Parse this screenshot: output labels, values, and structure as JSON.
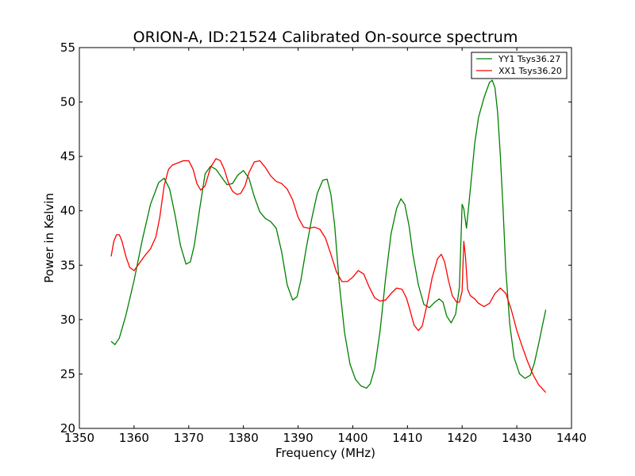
{
  "chart_data": {
    "type": "line",
    "title": "ORION-A, ID:21524 Calibrated On-source spectrum",
    "xlabel": "Frequency (MHz)",
    "ylabel": "Power in Kelvin",
    "xlim": [
      1350,
      1440
    ],
    "ylim": [
      20,
      55
    ],
    "xticks": [
      1350,
      1360,
      1370,
      1380,
      1390,
      1400,
      1410,
      1420,
      1430,
      1440
    ],
    "yticks": [
      20,
      25,
      30,
      35,
      40,
      45,
      50,
      55
    ],
    "grid": false,
    "legend_position": "top-right",
    "series": [
      {
        "name": "YY1 Tsys36.27",
        "color": "#008000",
        "x": [
          1355.8,
          1356.5,
          1357.3,
          1358.5,
          1360,
          1361.5,
          1363,
          1364.5,
          1365.5,
          1366.5,
          1367.5,
          1368.5,
          1369.5,
          1370.3,
          1371,
          1372,
          1373,
          1374,
          1375,
          1376,
          1377,
          1378,
          1379,
          1380,
          1381,
          1382,
          1383,
          1384,
          1385,
          1386,
          1387,
          1388,
          1389,
          1389.8,
          1390.5,
          1391.5,
          1392.5,
          1393.5,
          1394.5,
          1395.3,
          1396,
          1396.7,
          1397.5,
          1398.5,
          1399.5,
          1400.5,
          1401.5,
          1402.5,
          1403.2,
          1404,
          1405,
          1406,
          1407,
          1408,
          1408.8,
          1409.5,
          1410.3,
          1411,
          1412,
          1413,
          1414,
          1415,
          1415.8,
          1416.5,
          1417.2,
          1418,
          1418.8,
          1419.5,
          1420,
          1420.3,
          1420.8,
          1421.5,
          1422.3,
          1423,
          1424,
          1425,
          1425.5,
          1426,
          1426.5,
          1427,
          1427.5,
          1428,
          1428.7,
          1429.5,
          1430.5,
          1431.5,
          1432.5,
          1433.2,
          1434,
          1434.7,
          1435.3
        ],
        "values": [
          28.0,
          27.7,
          28.3,
          30.4,
          33.6,
          37.3,
          40.6,
          42.6,
          43.0,
          42.0,
          39.6,
          36.8,
          35.1,
          35.3,
          36.8,
          40.2,
          43.4,
          44.1,
          43.8,
          43.1,
          42.4,
          42.5,
          43.3,
          43.7,
          43.0,
          41.3,
          39.9,
          39.3,
          39.0,
          38.4,
          36.2,
          33.2,
          31.8,
          32.1,
          33.6,
          36.6,
          39.3,
          41.6,
          42.8,
          42.9,
          41.5,
          38.6,
          33.5,
          28.8,
          25.9,
          24.5,
          23.9,
          23.7,
          24.1,
          25.5,
          29.0,
          33.8,
          37.9,
          40.2,
          41.1,
          40.6,
          38.6,
          36.0,
          33.2,
          31.4,
          31.1,
          31.6,
          31.9,
          31.6,
          30.3,
          29.7,
          30.5,
          33.0,
          40.6,
          40.2,
          38.4,
          42.0,
          46.2,
          48.6,
          50.4,
          51.8,
          52.0,
          51.3,
          49.0,
          45.0,
          40.0,
          34.5,
          29.6,
          26.5,
          25.0,
          24.6,
          24.9,
          26.0,
          27.8,
          29.5,
          30.9
        ]
      },
      {
        "name": "XX1 Tsys36.20",
        "color": "#ff0000",
        "x": [
          1355.8,
          1356.3,
          1356.8,
          1357.3,
          1357.8,
          1358.5,
          1359.2,
          1360,
          1361,
          1362,
          1363,
          1364,
          1364.7,
          1365.5,
          1366.3,
          1367,
          1368,
          1369,
          1370,
          1370.8,
          1371.5,
          1372.2,
          1373,
          1374,
          1375,
          1375.8,
          1376.5,
          1377.3,
          1378,
          1378.8,
          1379.5,
          1380.3,
          1381,
          1382,
          1383,
          1384,
          1385,
          1386,
          1387,
          1388,
          1389,
          1390,
          1391,
          1392,
          1393,
          1394,
          1395,
          1396,
          1397,
          1398,
          1399,
          1400,
          1401,
          1402,
          1403,
          1404,
          1405,
          1406,
          1407,
          1408,
          1409,
          1409.8,
          1410.5,
          1411.2,
          1412,
          1412.7,
          1413.5,
          1414.5,
          1415.5,
          1416.2,
          1416.8,
          1417.5,
          1418.2,
          1419,
          1419.5,
          1420,
          1420.3,
          1420.6,
          1421,
          1421.5,
          1422.3,
          1423,
          1424,
          1425,
          1426,
          1427,
          1428,
          1429,
          1430,
          1431,
          1432,
          1433,
          1434,
          1435.3
        ],
        "values": [
          35.8,
          37.2,
          37.8,
          37.8,
          37.2,
          35.8,
          34.8,
          34.5,
          35.2,
          35.9,
          36.5,
          37.6,
          39.4,
          42.3,
          43.8,
          44.2,
          44.4,
          44.6,
          44.6,
          43.8,
          42.5,
          41.9,
          42.3,
          44.0,
          44.8,
          44.6,
          43.8,
          42.5,
          41.8,
          41.5,
          41.6,
          42.3,
          43.5,
          44.5,
          44.6,
          44.0,
          43.2,
          42.7,
          42.5,
          42.0,
          41.0,
          39.4,
          38.5,
          38.4,
          38.5,
          38.3,
          37.5,
          36.0,
          34.4,
          33.5,
          33.5,
          33.9,
          34.5,
          34.2,
          33.0,
          32.0,
          31.7,
          31.8,
          32.4,
          32.9,
          32.8,
          32.0,
          30.8,
          29.5,
          29.0,
          29.4,
          31.2,
          33.8,
          35.6,
          36.0,
          35.3,
          33.6,
          32.2,
          31.6,
          31.6,
          32.6,
          37.2,
          35.8,
          32.8,
          32.2,
          31.9,
          31.5,
          31.2,
          31.5,
          32.4,
          32.9,
          32.4,
          30.9,
          29.0,
          27.5,
          26.1,
          24.9,
          24.0,
          23.3
        ]
      }
    ]
  }
}
